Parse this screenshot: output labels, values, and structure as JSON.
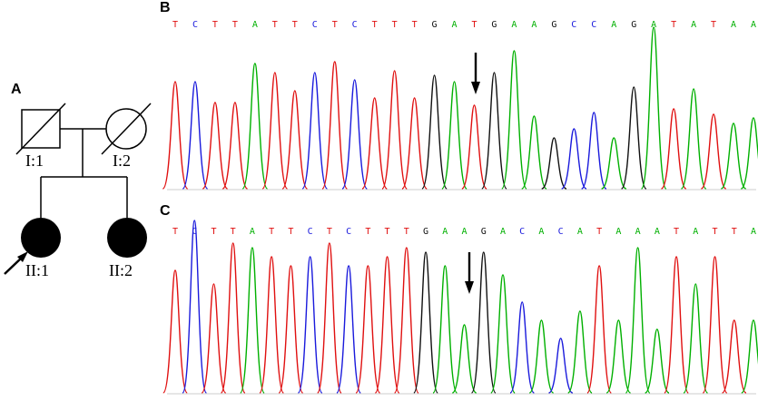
{
  "panels": {
    "a": "A",
    "b": "B",
    "c": "C"
  },
  "pedigree": {
    "i1": "I:1",
    "i2": "I:2",
    "ii1": "II:1",
    "ii2": "II:2"
  },
  "base_colors": {
    "A": "#00b000",
    "C": "#1a1adc",
    "G": "#111111",
    "T": "#e01010"
  },
  "seq_b": "TCTTATTCTCTTTGATGAAGCCAGATATAA",
  "seq_c": "TCTTATTCTCTTTGAAGACACATAAATATTA"
}
